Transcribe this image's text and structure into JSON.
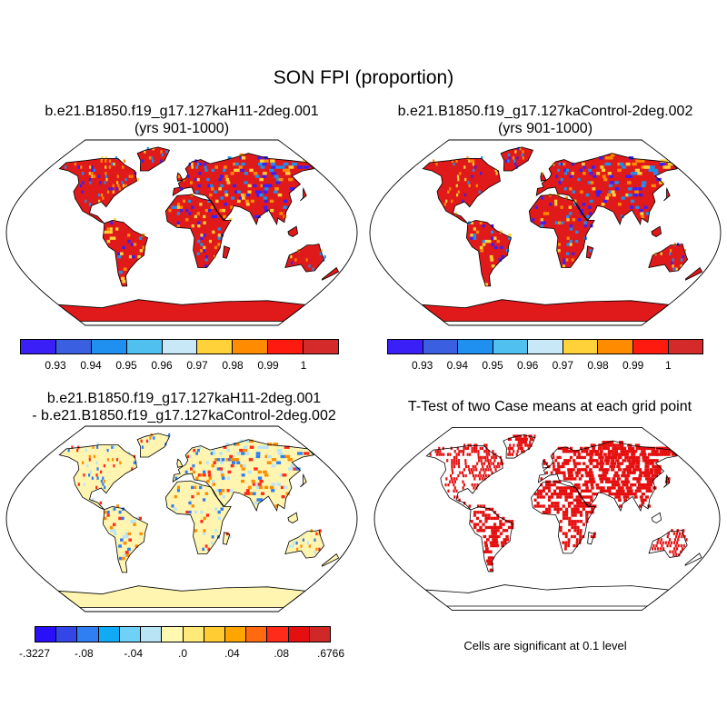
{
  "figure": {
    "title": "SON FPI (proportion)",
    "panels": [
      {
        "id": "case1",
        "title_lines": [
          "b.e21.B1850.f19_g17.127kaH11-2deg.001",
          "(yrs 901-1000)"
        ],
        "fill": "red_high",
        "colorbar": "cb_abs"
      },
      {
        "id": "case2",
        "title_lines": [
          "b.e21.B1850.f19_g17.127kaControl-2deg.002",
          "(yrs 901-1000)"
        ],
        "fill": "red_high",
        "colorbar": "cb_abs"
      },
      {
        "id": "diff",
        "title_lines": [
          "b.e21.B1850.f19_g17.127kaH11-2deg.001",
          "- b.e21.B1850.f19_g17.127kaControl-2deg.002"
        ],
        "fill": "pale_diff",
        "colorbar": "cb_diff"
      },
      {
        "id": "ttest",
        "title_lines": [
          "T-Test of two Case means at each grid point"
        ],
        "fill": "sig",
        "note": "Cells are significant at 0.1 level"
      }
    ],
    "colorbars": {
      "cb_abs": {
        "colors": [
          "#3b1ff7",
          "#3a5fe0",
          "#1f8ff0",
          "#4fc0f0",
          "#c8e8f8",
          "#ffd23a",
          "#ff8c00",
          "#ff1a10",
          "#d42a2a"
        ],
        "tick_labels": [
          "0.93",
          "0.94",
          "0.95",
          "0.96",
          "0.97",
          "0.98",
          "0.99",
          "1"
        ]
      },
      "cb_diff": {
        "colors": [
          "#2a10f8",
          "#3346e8",
          "#2f7ef2",
          "#10aaf5",
          "#6fd0f8",
          "#b8e4f6",
          "#fff8b0",
          "#ffe978",
          "#ffcc33",
          "#ffa500",
          "#ff6a10",
          "#ff2b1a",
          "#e60f0f",
          "#d02828"
        ],
        "tick_labels": [
          "-.3227",
          "-.08",
          "-.04",
          ".0",
          ".04",
          ".08",
          ".6766"
        ]
      }
    },
    "map_colors": {
      "red_high": {
        "land": "#e0191a",
        "accent": [
          "#3b1ff7",
          "#ffd23a",
          "#ff8c00",
          "#1f8ff0"
        ]
      },
      "pale_diff": {
        "land": "#fff5b0",
        "accent": [
          "#b8e4f6",
          "#ff2b1a",
          "#2f7ef2",
          "#ff8c00"
        ]
      },
      "sig": {
        "land": "#ffffff",
        "accent": [
          "#e60f0f"
        ]
      }
    }
  }
}
